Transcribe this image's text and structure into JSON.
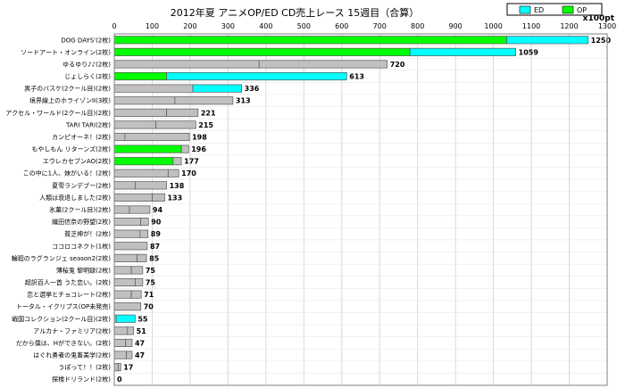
{
  "chart_data": {
    "type": "bar",
    "orientation": "horizontal",
    "stacked": true,
    "title": "2012年夏 アニメOP/ED CD売上レース 15週目（合算）",
    "unit_label": "x100pt",
    "xlim": [
      0,
      1300
    ],
    "x_ticks": [
      0,
      100,
      200,
      300,
      400,
      500,
      600,
      700,
      800,
      900,
      1000,
      1100,
      1200,
      1300
    ],
    "grid": true,
    "legend": {
      "position": "top-right",
      "entries": [
        {
          "label": "ED",
          "color": "#00ffff"
        },
        {
          "label": "OP",
          "color": "#00ff00"
        }
      ]
    },
    "colors": {
      "ED": "#00ffff",
      "OP": "#00ff00",
      "other": "#c0c0c0"
    },
    "categories": [
      {
        "label": "DOG DAYS'(2枚)",
        "total": 1250,
        "segments": [
          {
            "type": "OP",
            "value": 1035
          },
          {
            "type": "ED",
            "value": 215
          }
        ]
      },
      {
        "label": "ソードアート・オンライン(2枚)",
        "total": 1059,
        "segments": [
          {
            "type": "OP",
            "value": 780
          },
          {
            "type": "ED",
            "value": 279
          }
        ]
      },
      {
        "label": "ゆるゆり♪♪(2枚)",
        "total": 720,
        "segments": [
          {
            "type": "other",
            "value": 382
          },
          {
            "type": "other",
            "value": 338
          }
        ]
      },
      {
        "label": "じょしらく(2枚)",
        "total": 613,
        "segments": [
          {
            "type": "OP",
            "value": 138
          },
          {
            "type": "ED",
            "value": 475
          }
        ]
      },
      {
        "label": "黒子のバスケ(2クール目)(2枚)",
        "total": 336,
        "segments": [
          {
            "type": "other",
            "value": 207
          },
          {
            "type": "ED",
            "value": 129
          }
        ]
      },
      {
        "label": "境界線上のホライゾンII(3枚)",
        "total": 313,
        "segments": [
          {
            "type": "other",
            "value": 160
          },
          {
            "type": "other",
            "value": 153
          }
        ]
      },
      {
        "label": "アクセル・ワールド(2クール目)(2枚)",
        "total": 221,
        "segments": [
          {
            "type": "other",
            "value": 138
          },
          {
            "type": "other",
            "value": 83
          }
        ]
      },
      {
        "label": "TARI TARI(2枚)",
        "total": 215,
        "segments": [
          {
            "type": "other",
            "value": 110
          },
          {
            "type": "other",
            "value": 105
          }
        ]
      },
      {
        "label": "カンピオーネ！(2枚)",
        "total": 198,
        "segments": [
          {
            "type": "other",
            "value": 28
          },
          {
            "type": "other",
            "value": 170
          }
        ]
      },
      {
        "label": "もやしもん リターンズ(2枚)",
        "total": 196,
        "segments": [
          {
            "type": "OP",
            "value": 177
          },
          {
            "type": "other",
            "value": 19
          }
        ]
      },
      {
        "label": "エウレカセブンAO(2枚)",
        "total": 177,
        "segments": [
          {
            "type": "OP",
            "value": 155
          },
          {
            "type": "other",
            "value": 22
          }
        ]
      },
      {
        "label": "この中に1人、妹がいる！(2枚)",
        "total": 170,
        "segments": [
          {
            "type": "other",
            "value": 142
          },
          {
            "type": "other",
            "value": 28
          }
        ]
      },
      {
        "label": "夏雪ランデブー(2枚)",
        "total": 138,
        "segments": [
          {
            "type": "other",
            "value": 55
          },
          {
            "type": "other",
            "value": 83
          }
        ]
      },
      {
        "label": "人類は衰退しました(2枚)",
        "total": 133,
        "segments": [
          {
            "type": "other",
            "value": 100
          },
          {
            "type": "other",
            "value": 33
          }
        ]
      },
      {
        "label": "氷菓(2クール目)(2枚)",
        "total": 94,
        "segments": [
          {
            "type": "other",
            "value": 40
          },
          {
            "type": "other",
            "value": 54
          }
        ]
      },
      {
        "label": "織田信奈の野望(2枚)",
        "total": 90,
        "segments": [
          {
            "type": "other",
            "value": 70
          },
          {
            "type": "other",
            "value": 20
          }
        ]
      },
      {
        "label": "貧乏神が！(2枚)",
        "total": 89,
        "segments": [
          {
            "type": "other",
            "value": 68
          },
          {
            "type": "other",
            "value": 21
          }
        ]
      },
      {
        "label": "ココロコネクト(1枚)",
        "total": 87,
        "segments": [
          {
            "type": "other",
            "value": 87
          }
        ]
      },
      {
        "label": "輪廻のラグランジェ season2(2枚)",
        "total": 85,
        "segments": [
          {
            "type": "other",
            "value": 60
          },
          {
            "type": "other",
            "value": 25
          }
        ]
      },
      {
        "label": "薄桜鬼 黎明録(2枚)",
        "total": 75,
        "segments": [
          {
            "type": "other",
            "value": 45
          },
          {
            "type": "other",
            "value": 30
          }
        ]
      },
      {
        "label": "超訳百人一首 うた恋い。(2枚)",
        "total": 75,
        "segments": [
          {
            "type": "other",
            "value": 55
          },
          {
            "type": "other",
            "value": 20
          }
        ]
      },
      {
        "label": "恋と選挙とチョコレート(2枚)",
        "total": 71,
        "segments": [
          {
            "type": "other",
            "value": 45
          },
          {
            "type": "other",
            "value": 26
          }
        ]
      },
      {
        "label": "トータル・イクリプス(OP未発売)",
        "total": 70,
        "segments": [
          {
            "type": "other",
            "value": 70
          }
        ]
      },
      {
        "label": "戦国コレクション(2クール目)(2枚)",
        "total": 55,
        "segments": [
          {
            "type": "other",
            "value": 5
          },
          {
            "type": "ED",
            "value": 50
          }
        ]
      },
      {
        "label": "アルカナ・ファミリア(2枚)",
        "total": 51,
        "segments": [
          {
            "type": "other",
            "value": 35
          },
          {
            "type": "other",
            "value": 16
          }
        ]
      },
      {
        "label": "だから僕は、Hができない。(2枚)",
        "total": 47,
        "segments": [
          {
            "type": "other",
            "value": 30
          },
          {
            "type": "other",
            "value": 17
          }
        ]
      },
      {
        "label": "はぐれ勇者の鬼畜美学(2枚)",
        "total": 47,
        "segments": [
          {
            "type": "other",
            "value": 32
          },
          {
            "type": "other",
            "value": 15
          }
        ]
      },
      {
        "label": "うぽって！！(2枚)",
        "total": 17,
        "segments": [
          {
            "type": "other",
            "value": 10
          },
          {
            "type": "other",
            "value": 7
          }
        ]
      },
      {
        "label": "探検ドリランド(2枚)",
        "total": 0,
        "segments": []
      }
    ]
  }
}
